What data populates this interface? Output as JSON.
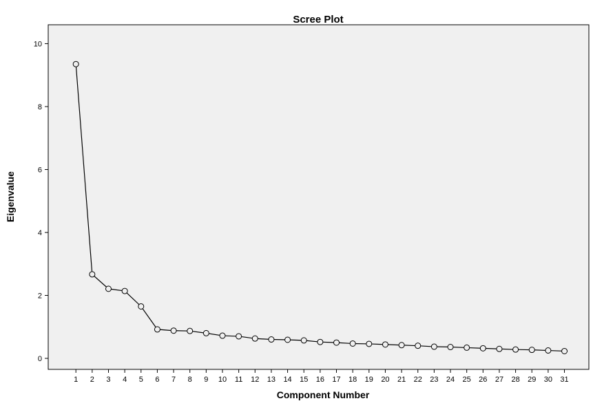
{
  "chart_data": {
    "type": "line",
    "title": "Scree Plot",
    "xlabel": "Component Number",
    "ylabel": "Eigenvalue",
    "x": [
      1,
      2,
      3,
      4,
      5,
      6,
      7,
      8,
      9,
      10,
      11,
      12,
      13,
      14,
      15,
      16,
      17,
      18,
      19,
      20,
      21,
      22,
      23,
      24,
      25,
      26,
      27,
      28,
      29,
      30,
      31
    ],
    "y": [
      9.35,
      2.67,
      2.21,
      2.14,
      1.65,
      0.92,
      0.88,
      0.87,
      0.8,
      0.72,
      0.7,
      0.63,
      0.6,
      0.59,
      0.57,
      0.52,
      0.5,
      0.47,
      0.46,
      0.44,
      0.42,
      0.4,
      0.37,
      0.36,
      0.34,
      0.32,
      0.3,
      0.28,
      0.27,
      0.25,
      0.23
    ],
    "xticks": [
      "1",
      "2",
      "3",
      "4",
      "5",
      "6",
      "7",
      "8",
      "9",
      "10",
      "11",
      "12",
      "13",
      "14",
      "15",
      "16",
      "17",
      "18",
      "19",
      "20",
      "21",
      "22",
      "23",
      "24",
      "25",
      "26",
      "27",
      "28",
      "29",
      "30",
      "31"
    ],
    "yticks": [
      "0",
      "2",
      "4",
      "6",
      "8",
      "10"
    ],
    "ylim": [
      -0.35,
      10.6
    ],
    "xlim": [
      -0.7,
      32.5
    ],
    "grid": false,
    "legend": "none",
    "colors": {
      "plot_background": "#f0f0f0",
      "line": "#000000",
      "marker_stroke": "#000000"
    }
  }
}
